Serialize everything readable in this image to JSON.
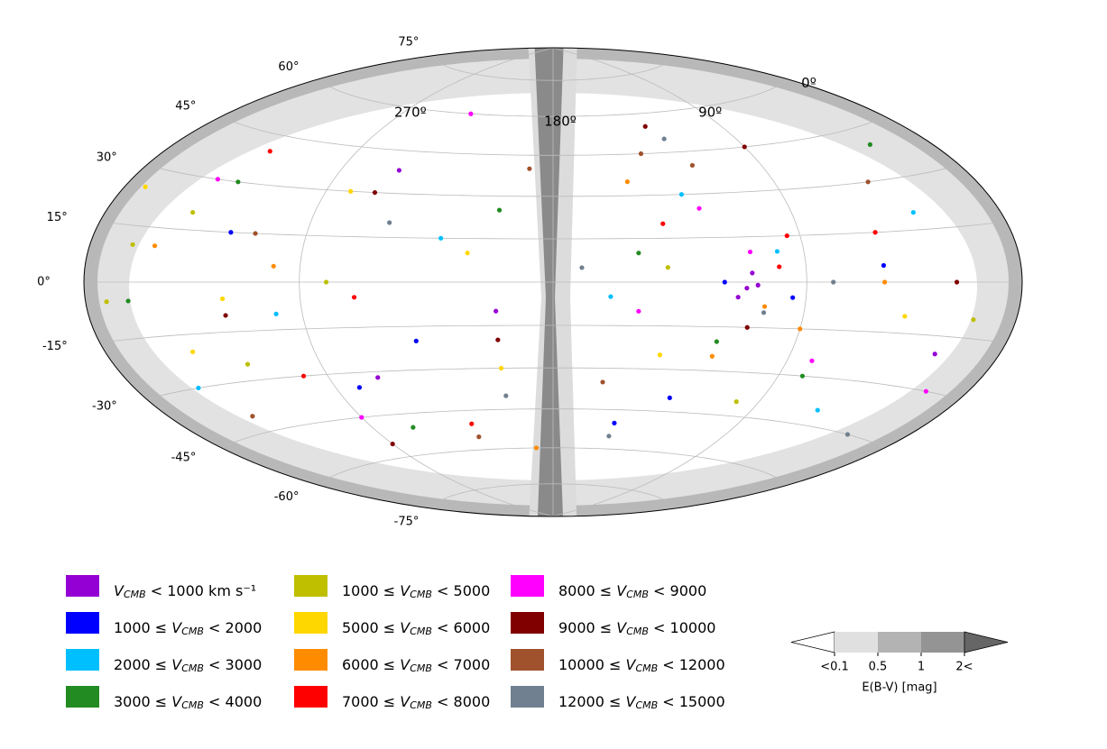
{
  "chart_data": {
    "type": "scatter",
    "projection": "hammer",
    "yticks": [
      {
        "value": 75,
        "label": "75°"
      },
      {
        "value": 60,
        "label": "60°"
      },
      {
        "value": 45,
        "label": "45°"
      },
      {
        "value": 30,
        "label": "30°"
      },
      {
        "value": 15,
        "label": "15°"
      },
      {
        "value": 0,
        "label": "0°"
      },
      {
        "value": -15,
        "label": "-15°"
      },
      {
        "value": -30,
        "label": "-30°"
      },
      {
        "value": -45,
        "label": "-45°"
      },
      {
        "value": -60,
        "label": "-60°"
      },
      {
        "value": -75,
        "label": "-75°"
      }
    ],
    "xticks": [
      {
        "value": 0,
        "label": "0º"
      },
      {
        "value": 90,
        "label": "90º"
      },
      {
        "value": 180,
        "label": "180º"
      },
      {
        "value": 270,
        "label": "270º"
      }
    ],
    "grid": true,
    "series": [
      {
        "name": "VCMB < 1000  km s⁻¹",
        "color": "#9400d3",
        "x": [
          112,
          110,
          115,
          250,
          245,
          108,
          30,
          200
        ],
        "y": [
          -2,
          3,
          -5,
          -32,
          38,
          -1,
          -20,
          -10
        ]
      },
      {
        "name": "1000 ≤ VCMB < 2000",
        "color": "#0000ff",
        "x": [
          120,
          95,
          260,
          130,
          60,
          300,
          230,
          150
        ],
        "y": [
          0,
          -5,
          -35,
          -40,
          5,
          15,
          -20,
          -50
        ]
      },
      {
        "name": "2000 ≤ VCMB < 3000",
        "color": "#00bfff",
        "x": [
          100,
          280,
          160,
          40,
          220,
          330,
          130,
          60
        ],
        "y": [
          10,
          -10,
          -5,
          20,
          15,
          -30,
          30,
          -40
        ]
      },
      {
        "name": "3000 ≤ VCMB < 4000",
        "color": "#228b22",
        "x": [
          120,
          310,
          200,
          80,
          340,
          150,
          250,
          30
        ],
        "y": [
          -20,
          30,
          25,
          -30,
          -5,
          10,
          -50,
          40
        ]
      },
      {
        "name": "1000 ≤ VCMB < 5000",
        "color": "#bfbf00",
        "x": [
          340,
          350,
          320,
          140,
          260,
          20,
          100,
          300
        ],
        "y": [
          10,
          -5,
          20,
          5,
          0,
          -10,
          -40,
          -25
        ]
      },
      {
        "name": "5000 ≤ VCMB < 6000",
        "color": "#ffd700",
        "x": [
          300,
          320,
          200,
          210,
          50,
          350,
          140,
          260
        ],
        "y": [
          -5,
          -20,
          -30,
          10,
          -10,
          25,
          -25,
          30
        ]
      },
      {
        "name": "6000 ≤ VCMB < 7000",
        "color": "#ff8c00",
        "x": [
          105,
          90,
          120,
          280,
          60,
          190,
          330,
          150
        ],
        "y": [
          -8,
          -15,
          -25,
          5,
          0,
          -60,
          10,
          35
        ]
      },
      {
        "name": "7000 ≤ VCMB < 8000",
        "color": "#ff0000",
        "x": [
          95,
          100,
          140,
          250,
          280,
          60,
          220,
          310
        ],
        "y": [
          15,
          5,
          20,
          -5,
          -30,
          15,
          -50,
          40
        ]
      },
      {
        "name": "8000 ≤ VCMB < 9000",
        "color": "#ff00ff",
        "x": [
          125,
          110,
          230,
          320,
          270,
          80,
          150,
          20
        ],
        "y": [
          25,
          10,
          60,
          30,
          -45,
          -25,
          -10,
          -30
        ]
      },
      {
        "name": "9000 ≤ VCMB < 10000",
        "color": "#800000",
        "x": [
          130,
          90,
          110,
          270,
          300,
          30,
          200,
          250
        ],
        "y": [
          55,
          45,
          -15,
          -55,
          -10,
          0,
          -20,
          30
        ]
      },
      {
        "name": "10000 ≤ VCMB < 12000",
        "color": "#a0522d",
        "x": [
          140,
          120,
          160,
          220,
          290,
          50,
          190,
          320
        ],
        "y": [
          45,
          40,
          -35,
          -55,
          15,
          30,
          40,
          -40
        ]
      },
      {
        "name": "12000 ≤ VCMB < 15000",
        "color": "#708090",
        "x": [
          125,
          105,
          150,
          200,
          80,
          240,
          170,
          30
        ],
        "y": [
          50,
          -10,
          -55,
          -40,
          0,
          20,
          5,
          -45
        ]
      }
    ],
    "colorbar": {
      "label": "E(B-V) [mag]",
      "colors": [
        "#ffffff",
        "#e0e0e0",
        "#b3b3b3",
        "#949494",
        "#666666"
      ],
      "ticks": [
        {
          "value": 0.1,
          "label": "<0.1"
        },
        0.5,
        1,
        {
          "value": 2,
          "label": "2<"
        }
      ]
    }
  }
}
